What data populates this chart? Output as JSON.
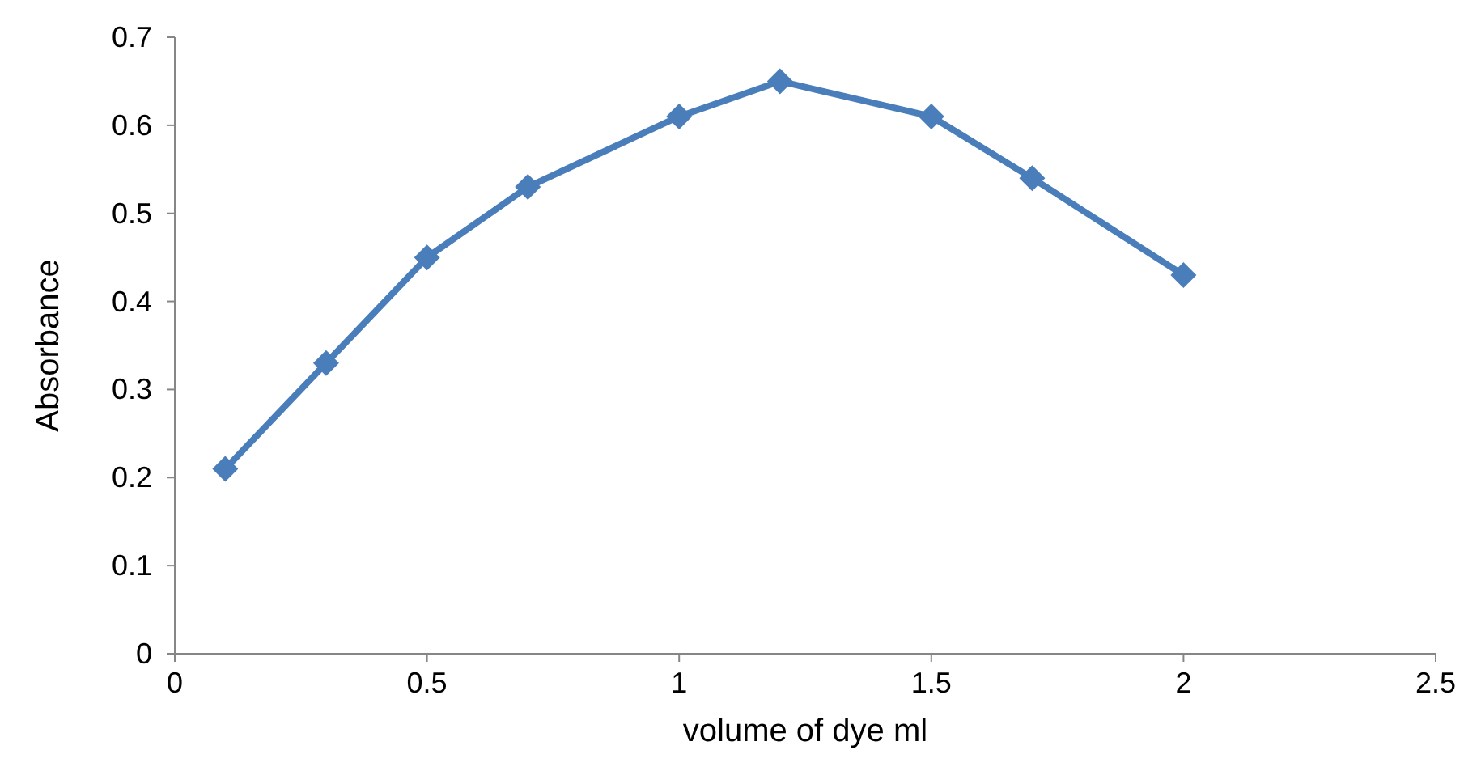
{
  "chart_data": {
    "type": "line",
    "xlabel": "volume of dye ml",
    "ylabel": "Absorbance",
    "x": [
      0.1,
      0.3,
      0.5,
      0.7,
      1,
      1.2,
      1.5,
      1.7,
      2
    ],
    "series": [
      {
        "color": "#4a7ebb",
        "values": [
          0.21,
          0.33,
          0.45,
          0.53,
          0.61,
          0.65,
          0.61,
          0.54,
          0.43
        ]
      }
    ],
    "xlim": [
      0,
      2.5
    ],
    "xticks": [
      0,
      0.5,
      1,
      1.5,
      2,
      2.5
    ],
    "ylim": [
      0,
      0.7
    ],
    "yticks": [
      0,
      0.1,
      0.2,
      0.3,
      0.4,
      0.5,
      0.6,
      0.7
    ],
    "grid": false,
    "marker": "diamond",
    "line_style": "solid"
  }
}
